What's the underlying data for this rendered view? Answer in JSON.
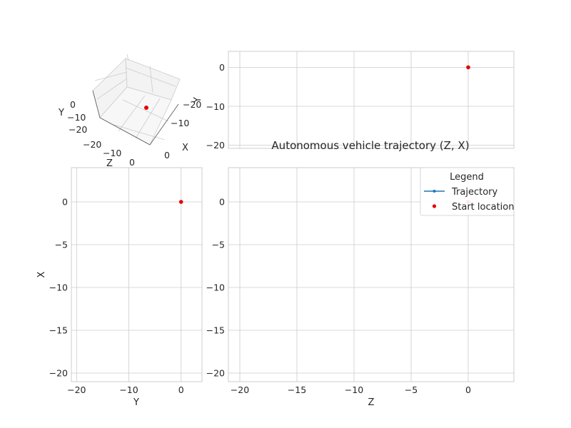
{
  "chart_data": [
    {
      "panel": "3d",
      "type": "scatter",
      "xlabel": "X",
      "ylabel": "Y",
      "zlabel": "Z",
      "x_ticks": [
        "0",
        "−10",
        "−20"
      ],
      "y_ticks": [
        "0",
        "−10",
        "−20"
      ],
      "z_ticks": [
        "0",
        "−10",
        "−20"
      ],
      "series": [
        {
          "name": "Start location",
          "color": "#e50000",
          "points": [
            {
              "x": 0,
              "y": 0,
              "z": 0
            }
          ]
        }
      ]
    },
    {
      "panel": "zy",
      "type": "scatter",
      "xlabel": "",
      "ylabel": "Y",
      "xlim": [
        -21,
        4
      ],
      "ylim": [
        -21,
        4
      ],
      "x_ticks": [
        -20,
        -15,
        -10,
        -5,
        0
      ],
      "y_ticks": [
        -20,
        -10,
        0
      ],
      "y_tick_labels": [
        "−20",
        "−10",
        "0"
      ],
      "grid": true,
      "series": [
        {
          "name": "Start location",
          "color": "#e50000",
          "points": [
            {
              "x": 0,
              "y": 0
            }
          ]
        }
      ]
    },
    {
      "panel": "yx",
      "type": "scatter",
      "xlabel": "Y",
      "ylabel": "X",
      "xlim": [
        -21,
        4
      ],
      "ylim": [
        -21,
        4
      ],
      "x_ticks": [
        -20,
        -10,
        0
      ],
      "x_tick_labels": [
        "−20",
        "−10",
        "0"
      ],
      "y_ticks": [
        -20,
        -15,
        -10,
        -5,
        0
      ],
      "y_tick_labels": [
        "−20",
        "−15",
        "−10",
        "−5",
        "0"
      ],
      "grid": true,
      "series": [
        {
          "name": "Start location",
          "color": "#e50000",
          "points": [
            {
              "x": 0,
              "y": 0
            }
          ]
        }
      ]
    },
    {
      "panel": "zx",
      "type": "line",
      "title": "Autonomous vehicle trajectory (Z, X)",
      "xlabel": "Z",
      "ylabel": "",
      "xlim": [
        -21,
        4
      ],
      "ylim": [
        -21,
        4
      ],
      "x_ticks": [
        -20,
        -15,
        -10,
        -5,
        0
      ],
      "x_tick_labels": [
        "−20",
        "−15",
        "−10",
        "−5",
        "0"
      ],
      "y_ticks": [
        -20,
        -15,
        -10,
        -5,
        0
      ],
      "y_tick_labels": [
        "−20",
        "−15",
        "−10",
        "−5",
        "0"
      ],
      "grid": true,
      "legend": {
        "title": "Legend",
        "placement": "top-right"
      },
      "series": [
        {
          "name": "Trajectory",
          "color": "#1f77b4",
          "marker": "dot",
          "points": []
        },
        {
          "name": "Start location",
          "color": "#e50000",
          "marker": "dot",
          "points": [
            {
              "x": 0,
              "y": 0
            }
          ]
        }
      ]
    }
  ]
}
